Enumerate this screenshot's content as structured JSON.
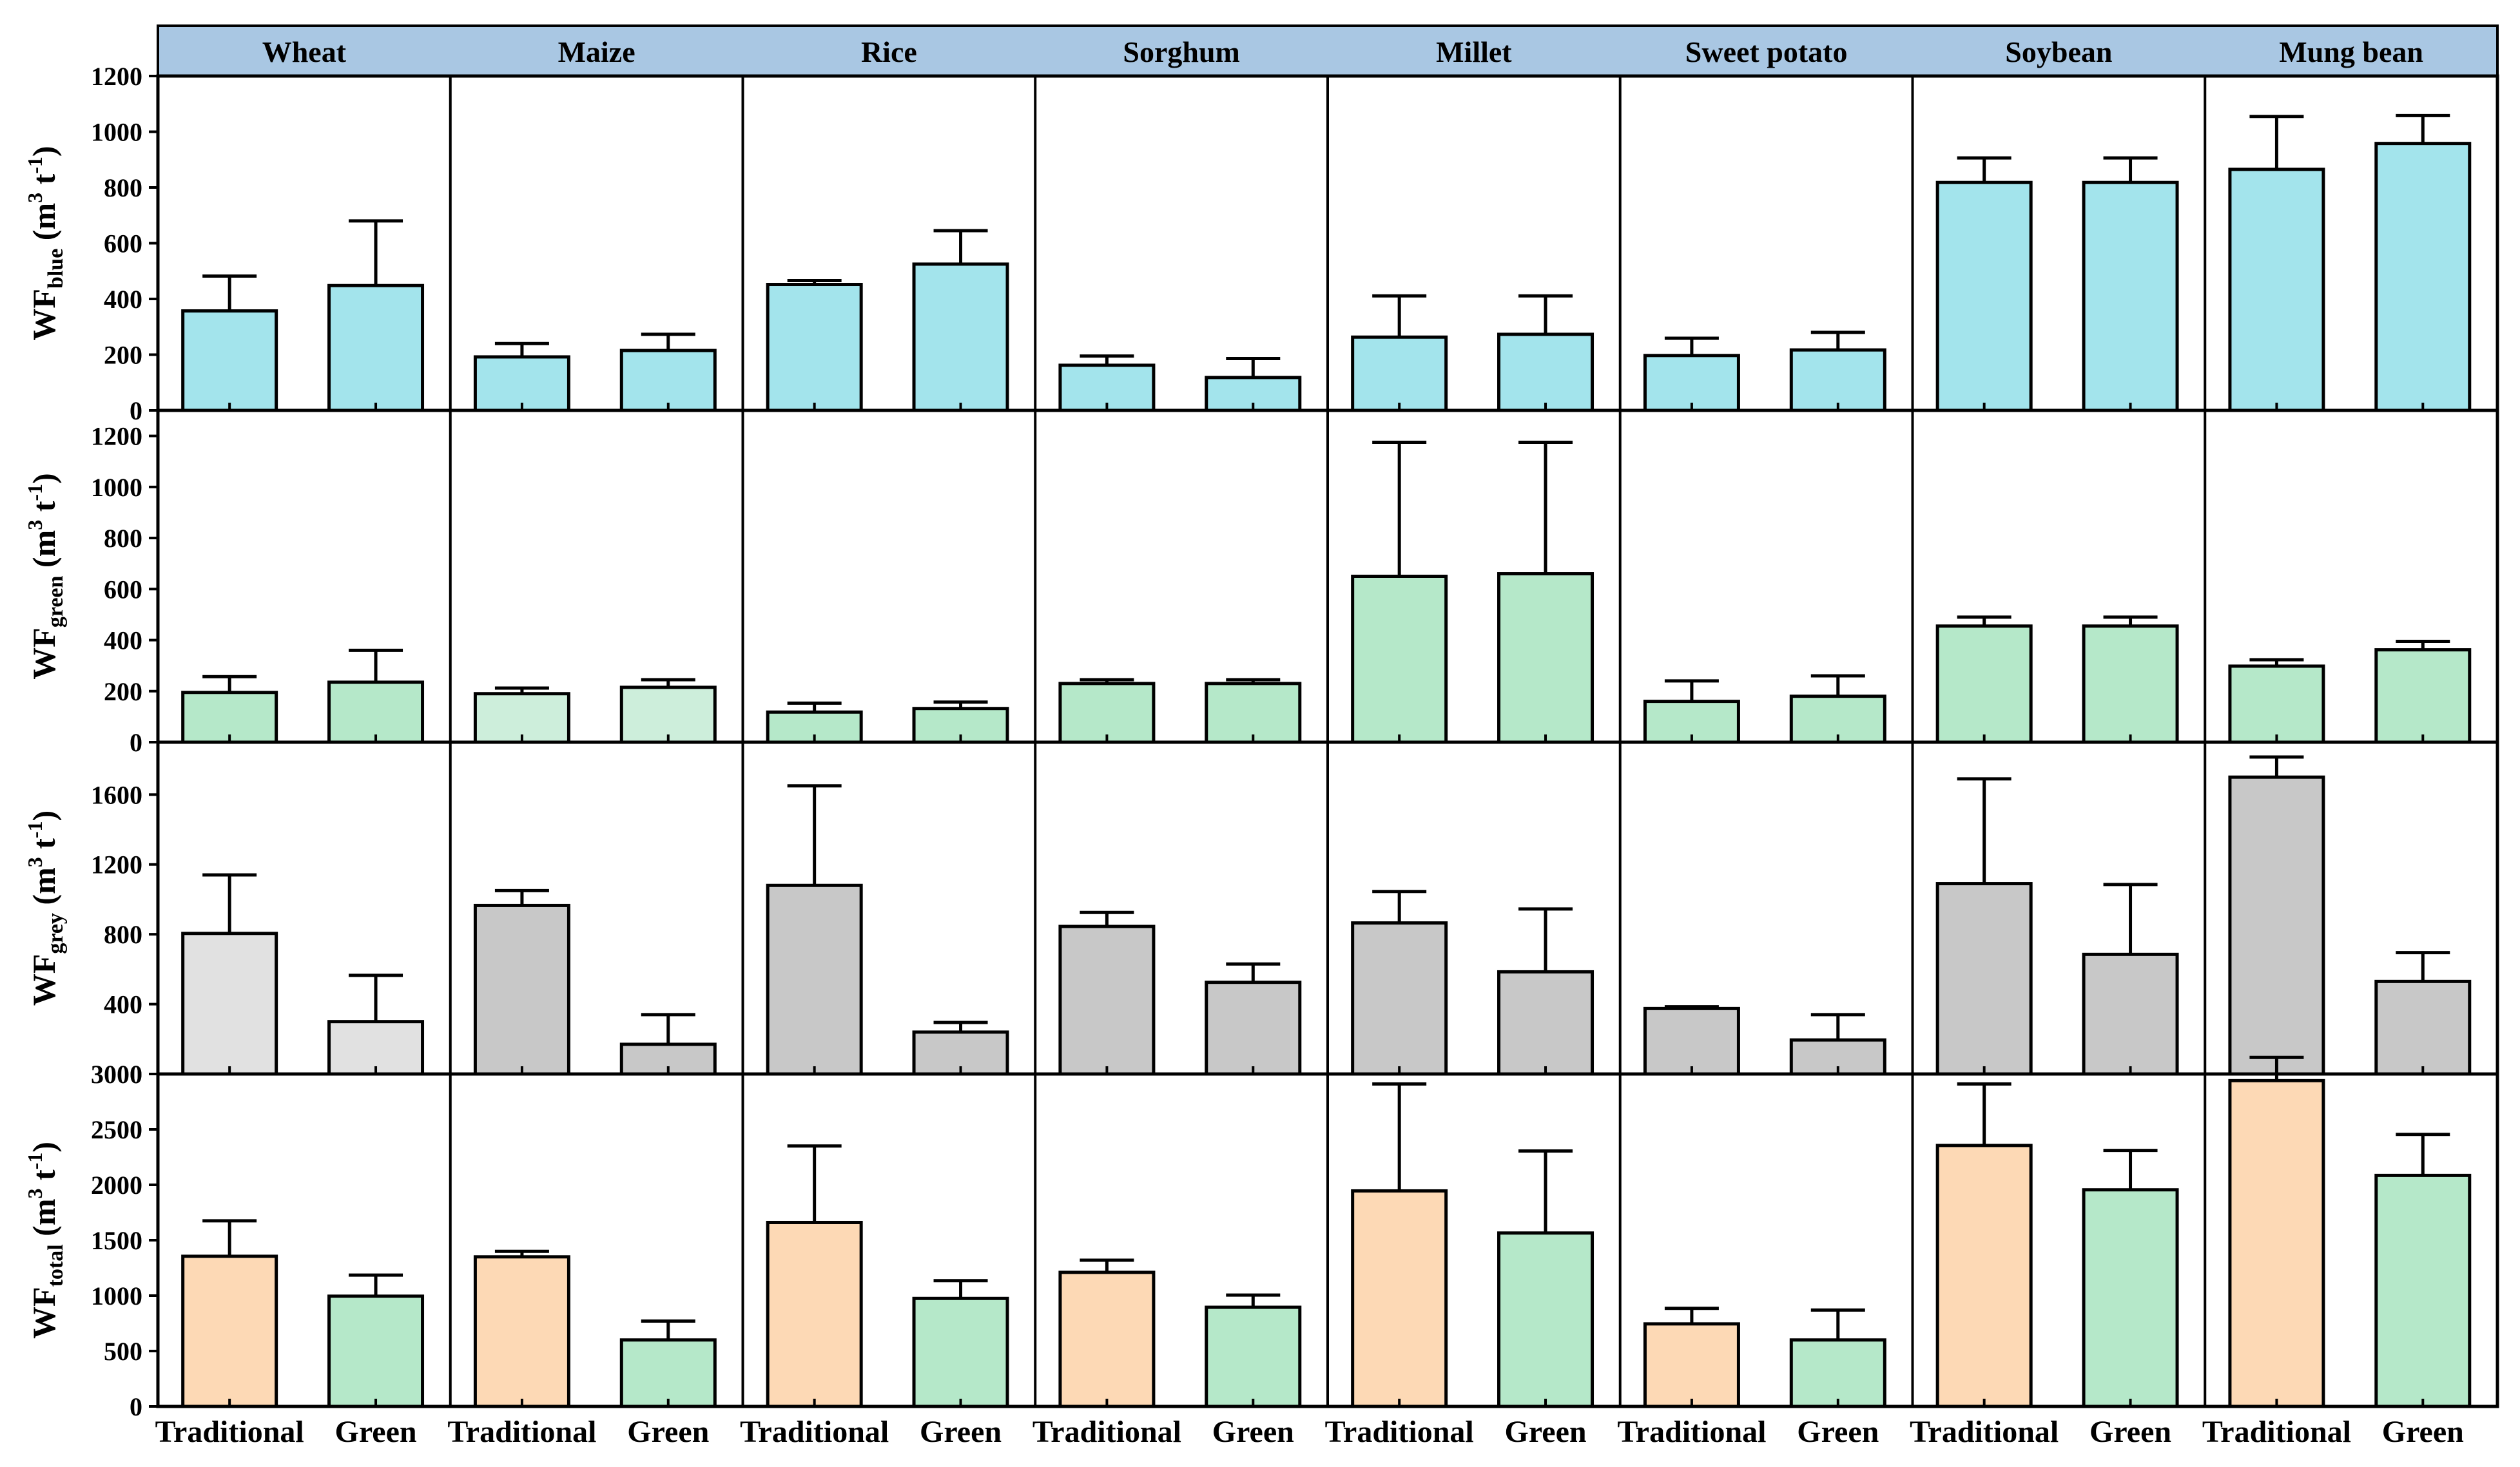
{
  "chart_data": {
    "type": "bar",
    "crops": [
      "Wheat",
      "Maize",
      "Rice",
      "Sorghum",
      "Millet",
      "Sweet potato",
      "Soybean",
      "Mung bean"
    ],
    "groups": [
      "Traditional",
      "Green"
    ],
    "panels": [
      {
        "id": "blue",
        "ylabel": {
          "main": "WF",
          "sub": "blue",
          "unit_pre": " (m",
          "sup1": "3",
          "unit_mid": " t",
          "sup2": "-1",
          "unit_post": ")"
        },
        "ylim": [
          0,
          1200
        ],
        "yticks": [
          0,
          200,
          400,
          600,
          800,
          1000,
          1200
        ],
        "ytick_labels": [
          "0",
          "200",
          "400",
          "600",
          "800",
          "1000",
          "1200"
        ],
        "values": [
          [
            357,
            448
          ],
          [
            192,
            215
          ],
          [
            452,
            525
          ],
          [
            162,
            118
          ],
          [
            263,
            273
          ],
          [
            197,
            217
          ],
          [
            818,
            818
          ],
          [
            865,
            958
          ]
        ],
        "errors": [
          [
            125,
            232
          ],
          [
            48,
            58
          ],
          [
            14,
            120
          ],
          [
            33,
            68
          ],
          [
            148,
            138
          ],
          [
            62,
            63
          ],
          [
            88,
            88
          ],
          [
            190,
            100
          ]
        ],
        "colors": [
          [
            "#a3e4ec",
            "#a3e4ec"
          ],
          [
            "#a3e4ec",
            "#a3e4ec"
          ],
          [
            "#a3e4ec",
            "#a3e4ec"
          ],
          [
            "#a3e4ec",
            "#a3e4ec"
          ],
          [
            "#a3e4ec",
            "#a3e4ec"
          ],
          [
            "#a3e4ec",
            "#a3e4ec"
          ],
          [
            "#a3e4ec",
            "#a3e4ec"
          ],
          [
            "#a3e4ec",
            "#a3e4ec"
          ]
        ]
      },
      {
        "id": "green",
        "ylabel": {
          "main": "WF",
          "sub": "green",
          "unit_pre": " (m",
          "sup1": "3",
          "unit_mid": " t",
          "sup2": "-1",
          "unit_post": ")"
        },
        "ylim": [
          0,
          1300
        ],
        "yticks": [
          0,
          200,
          400,
          600,
          800,
          1000,
          1200
        ],
        "ytick_labels": [
          "0",
          "200",
          "400",
          "600",
          "800",
          "1000",
          "1200"
        ],
        "values": [
          [
            195,
            235
          ],
          [
            190,
            215
          ],
          [
            118,
            132
          ],
          [
            230,
            230
          ],
          [
            650,
            660
          ],
          [
            160,
            180
          ],
          [
            455,
            455
          ],
          [
            298,
            362
          ]
        ],
        "errors": [
          [
            62,
            125
          ],
          [
            22,
            30
          ],
          [
            35,
            25
          ],
          [
            15,
            15
          ],
          [
            525,
            515
          ],
          [
            80,
            80
          ],
          [
            35,
            35
          ],
          [
            25,
            33
          ]
        ],
        "colors": [
          [
            "#b5e8c9",
            "#b5e8c9"
          ],
          [
            "#cdeedb",
            "#cdeedb"
          ],
          [
            "#b5e8c9",
            "#b5e8c9"
          ],
          [
            "#b5e8c9",
            "#b5e8c9"
          ],
          [
            "#b5e8c9",
            "#b5e8c9"
          ],
          [
            "#b5e8c9",
            "#b5e8c9"
          ],
          [
            "#b5e8c9",
            "#b5e8c9"
          ],
          [
            "#b5e8c9",
            "#b5e8c9"
          ]
        ]
      },
      {
        "id": "grey",
        "ylabel": {
          "main": "WF",
          "sub": "grey",
          "unit_pre": " (m",
          "sup1": "3",
          "unit_mid": " t",
          "sup2": "-1",
          "unit_post": ")"
        },
        "ylim": [
          0,
          1900
        ],
        "yticks": [
          0,
          400,
          800,
          1200,
          1600
        ],
        "ytick_labels": [
          "0",
          "400",
          "800",
          "1200",
          "1600"
        ],
        "values": [
          [
            805,
            300
          ],
          [
            965,
            170
          ],
          [
            1080,
            240
          ],
          [
            845,
            525
          ],
          [
            865,
            585
          ],
          [
            375,
            195
          ],
          [
            1090,
            685
          ],
          [
            1700,
            530
          ]
        ],
        "errors": [
          [
            335,
            265
          ],
          [
            85,
            170
          ],
          [
            570,
            55
          ],
          [
            80,
            105
          ],
          [
            180,
            360
          ],
          [
            10,
            145
          ],
          [
            600,
            400
          ],
          [
            115,
            165
          ]
        ],
        "colors": [
          [
            "#e1e1e1",
            "#e1e1e1"
          ],
          [
            "#c8c8c8",
            "#c8c8c8"
          ],
          [
            "#c8c8c8",
            "#c8c8c8"
          ],
          [
            "#c8c8c8",
            "#c8c8c8"
          ],
          [
            "#c8c8c8",
            "#c8c8c8"
          ],
          [
            "#c8c8c8",
            "#c8c8c8"
          ],
          [
            "#c8c8c8",
            "#c8c8c8"
          ],
          [
            "#c8c8c8",
            "#c8c8c8"
          ]
        ]
      },
      {
        "id": "total",
        "ylabel": {
          "main": "WF",
          "sub": "total",
          "unit_pre": " (m",
          "sup1": "3",
          "unit_mid": " t",
          "sup2": "-1",
          "unit_post": ")"
        },
        "ylim": [
          0,
          3000
        ],
        "yticks": [
          0,
          500,
          1000,
          1500,
          2000,
          2500,
          3000
        ],
        "ytick_labels": [
          "0",
          "500",
          "1000",
          "1500",
          "2000",
          "2500",
          "3000"
        ],
        "values": [
          [
            1355,
            995
          ],
          [
            1350,
            600
          ],
          [
            1660,
            975
          ],
          [
            1210,
            895
          ],
          [
            1945,
            1565
          ],
          [
            745,
            600
          ],
          [
            2355,
            1955
          ],
          [
            2940,
            2085
          ]
        ],
        "errors": [
          [
            320,
            190
          ],
          [
            50,
            170
          ],
          [
            690,
            160
          ],
          [
            110,
            110
          ],
          [
            965,
            740
          ],
          [
            140,
            270
          ],
          [
            555,
            355
          ],
          [
            210,
            370
          ]
        ],
        "colors": [
          [
            "#fdd9b5",
            "#b5e8c9"
          ],
          [
            "#fdd9b5",
            "#b5e8c9"
          ],
          [
            "#fdd9b5",
            "#b5e8c9"
          ],
          [
            "#fdd9b5",
            "#b5e8c9"
          ],
          [
            "#fdd9b5",
            "#b5e8c9"
          ],
          [
            "#fdd9b5",
            "#b5e8c9"
          ],
          [
            "#fdd9b5",
            "#b5e8c9"
          ],
          [
            "#fdd9b5",
            "#b5e8c9"
          ]
        ]
      }
    ]
  },
  "style": {
    "header_fill": "#a9c7e3",
    "axis_color": "#000000"
  }
}
